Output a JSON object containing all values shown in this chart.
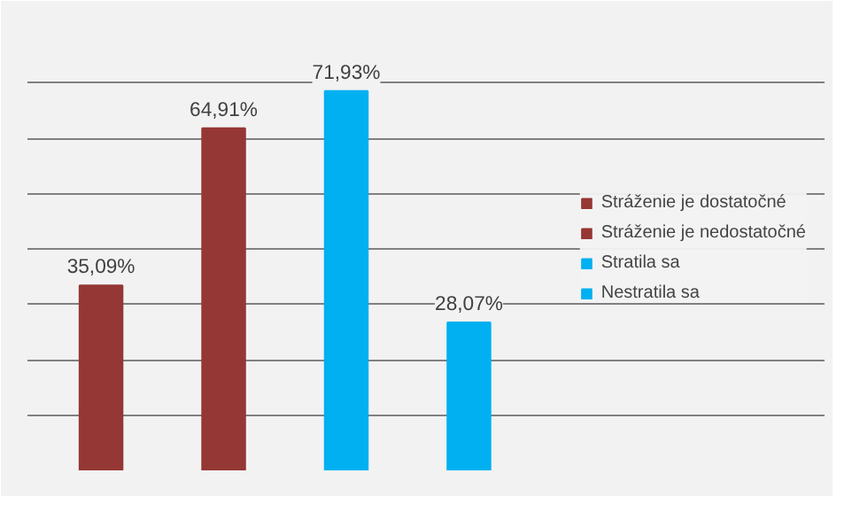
{
  "chart_data": {
    "type": "bar",
    "categories": [
      null,
      null,
      null,
      null
    ],
    "stacked": true,
    "series": [
      {
        "name": "Stráženie je dostatočné",
        "color": "#953735",
        "values": [
          35.09,
          null,
          null,
          null
        ],
        "value_labels": [
          "35,09%",
          null,
          null,
          null
        ]
      },
      {
        "name": "Stráženie je nedostatočné",
        "color": "#953735",
        "values": [
          null,
          64.91,
          null,
          null
        ],
        "value_labels": [
          null,
          "64,91%",
          null,
          null
        ]
      },
      {
        "name": "Stratila sa",
        "color": "#00b0f0",
        "values": [
          null,
          null,
          71.93,
          null
        ],
        "value_labels": [
          null,
          null,
          "71,93%",
          null
        ]
      },
      {
        "name": "Nestratila sa",
        "color": "#00b0f0",
        "values": [
          null,
          null,
          null,
          28.07
        ],
        "value_labels": [
          null,
          null,
          null,
          "28,07%"
        ]
      }
    ],
    "ylim": [
      0,
      84
    ],
    "yticks": [
      {
        "value": 0,
        "label": null
      },
      {
        "value": 10.5,
        "label": null
      },
      {
        "value": 21,
        "label": null
      },
      {
        "value": 31.5,
        "label": null
      },
      {
        "value": 42,
        "label": null
      },
      {
        "value": 52.5,
        "label": null
      },
      {
        "value": 63,
        "label": null
      },
      {
        "value": 73.5,
        "label": null
      },
      {
        "value": 84,
        "label": null
      }
    ],
    "grid": "y",
    "legend": "right",
    "tick_labels": false
  }
}
